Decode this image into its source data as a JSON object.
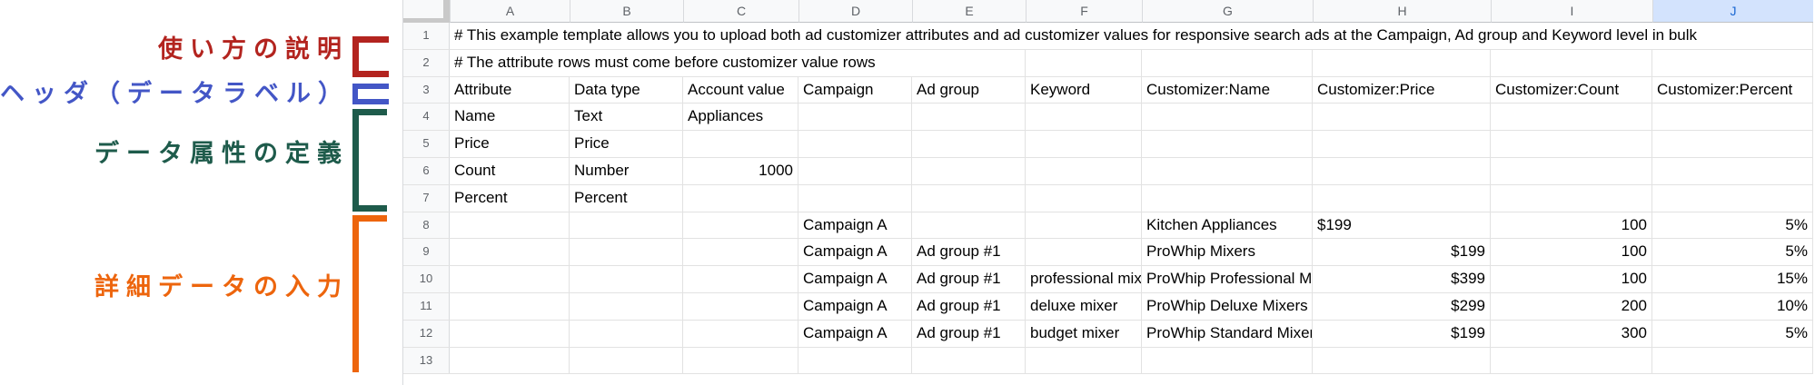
{
  "annotations": {
    "labels": [
      {
        "id": "usage",
        "text": "使い方の説明",
        "color": "#b3241f",
        "target_rows": "1-2"
      },
      {
        "id": "header",
        "text": "ヘッダ（データラベル）",
        "color": "#4356c6",
        "target_rows": "3"
      },
      {
        "id": "attrdef",
        "text": "データ属性の定義",
        "color": "#1e5b4b",
        "target_rows": "4-7"
      },
      {
        "id": "detail",
        "text": "詳細データの入力",
        "color": "#ed650d",
        "target_rows": "8-13"
      }
    ]
  },
  "spreadsheet": {
    "columns": [
      "A",
      "B",
      "C",
      "D",
      "E",
      "F",
      "G",
      "H",
      "I",
      "J"
    ],
    "selected_column": "J",
    "colors": {
      "header_bg": "#f8f9fa",
      "header_text": "#5f6368",
      "selected_header_bg": "#d3e3fd",
      "selected_header_text": "#1967d2",
      "gridline": "#e2e2e2"
    },
    "rows": [
      {
        "n": "1",
        "span": 10,
        "text": "# This example template allows you to upload both ad customizer attributes and ad customizer values for responsive search ads at the Campaign, Ad group and Keyword level in bulk"
      },
      {
        "n": "2",
        "span": 5,
        "text": "# The attribute rows must come before customizer value rows"
      },
      {
        "n": "3",
        "cells": {
          "A": "Attribute",
          "B": "Data type",
          "C": "Account value",
          "D": "Campaign",
          "E": "Ad group",
          "F": "Keyword",
          "G": "Customizer:Name",
          "H": "Customizer:Price",
          "I": "Customizer:Count",
          "J": "Customizer:Percent"
        }
      },
      {
        "n": "4",
        "cells": {
          "A": "Name",
          "B": "Text",
          "C": "Appliances"
        }
      },
      {
        "n": "5",
        "cells": {
          "A": "Price",
          "B": "Price"
        }
      },
      {
        "n": "6",
        "cells": {
          "A": "Count",
          "B": "Number",
          "C": "1000"
        },
        "right": [
          "C"
        ]
      },
      {
        "n": "7",
        "cells": {
          "A": "Percent",
          "B": "Percent"
        }
      },
      {
        "n": "8",
        "cells": {
          "D": "Campaign A",
          "G": "Kitchen Appliances",
          "H": "$199",
          "I": "100",
          "J": "5%"
        },
        "right": [
          "I",
          "J"
        ]
      },
      {
        "n": "9",
        "cells": {
          "D": "Campaign A",
          "E": "Ad group #1",
          "G": "ProWhip Mixers",
          "H": "$199",
          "I": "100",
          "J": "5%"
        },
        "right": [
          "H",
          "I",
          "J"
        ]
      },
      {
        "n": "10",
        "cells": {
          "D": "Campaign A",
          "E": "Ad group #1",
          "F": "professional mixer",
          "G": "ProWhip Professional Mixers",
          "H": "$399",
          "I": "100",
          "J": "15%"
        },
        "right": [
          "H",
          "I",
          "J"
        ]
      },
      {
        "n": "11",
        "cells": {
          "D": "Campaign A",
          "E": "Ad group #1",
          "F": "deluxe mixer",
          "G": "ProWhip Deluxe Mixers",
          "H": "$299",
          "I": "200",
          "J": "10%"
        },
        "right": [
          "H",
          "I",
          "J"
        ]
      },
      {
        "n": "12",
        "cells": {
          "D": "Campaign A",
          "E": "Ad group #1",
          "F": "budget mixer",
          "G": "ProWhip Standard Mixers",
          "H": "$199",
          "I": "300",
          "J": "5%"
        },
        "right": [
          "H",
          "I",
          "J"
        ]
      },
      {
        "n": "13",
        "cells": {}
      }
    ]
  }
}
